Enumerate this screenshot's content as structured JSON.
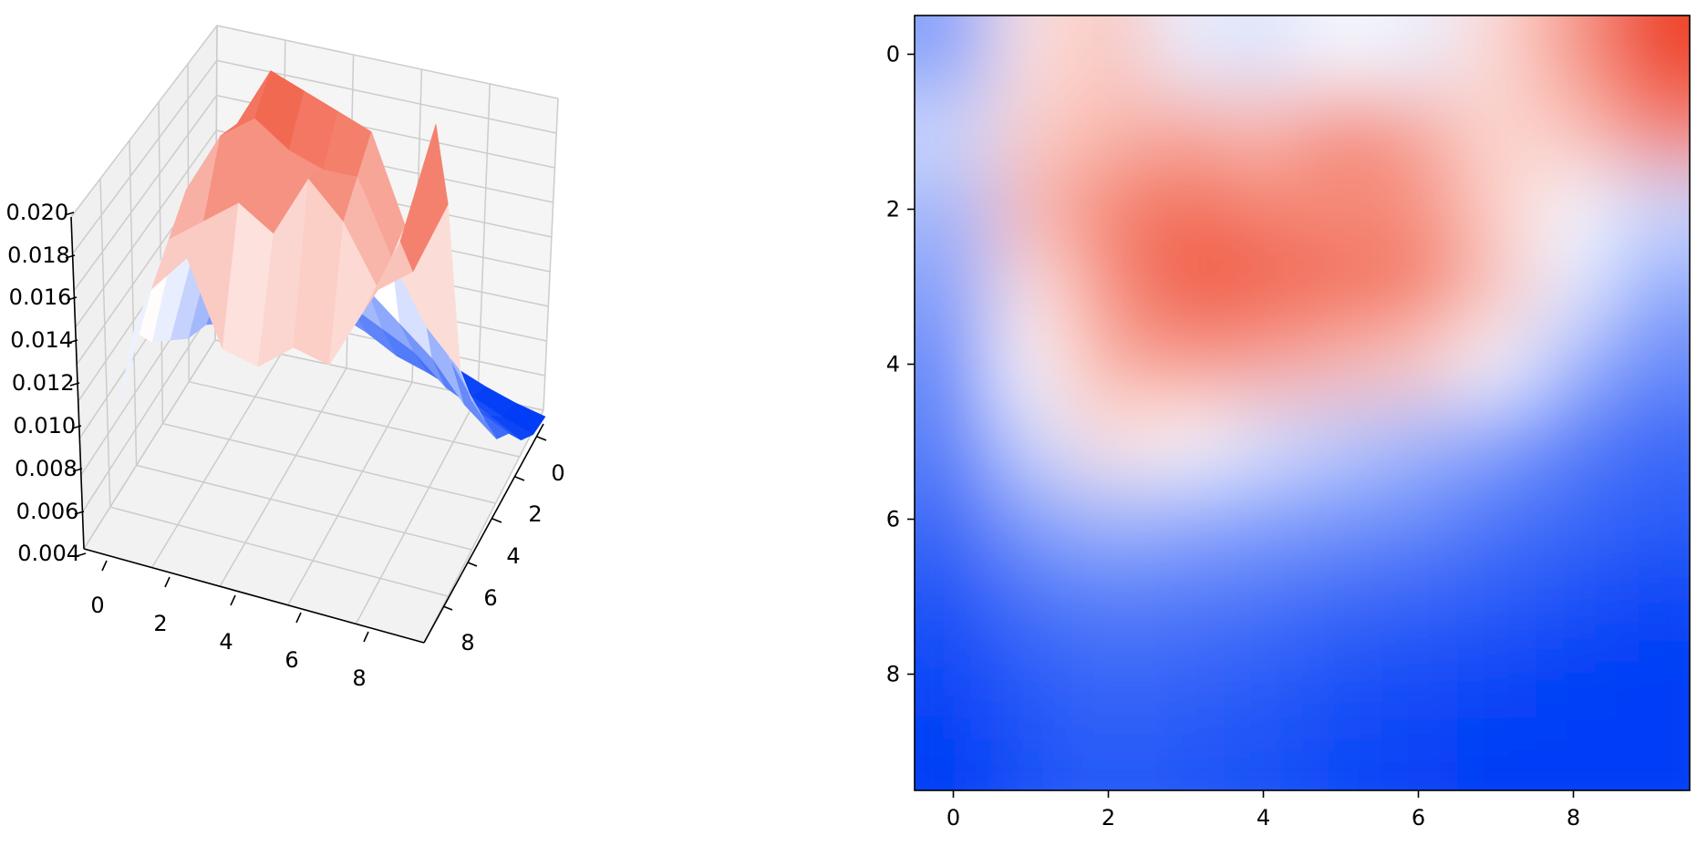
{
  "chart_data": [
    {
      "type": "surface3d",
      "colormap": "bwr",
      "grid": true,
      "x_ticks": [
        "0",
        "2",
        "4",
        "6",
        "8"
      ],
      "y_ticks": [
        "0",
        "2",
        "4",
        "6",
        "8"
      ],
      "z_ticks": [
        "0.004",
        "0.006",
        "0.008",
        "0.010",
        "0.012",
        "0.014",
        "0.016",
        "0.018",
        "0.020"
      ],
      "zlim": [
        0.004,
        0.0215
      ],
      "z": [
        [
          0.0085,
          0.014,
          0.0155,
          0.012,
          0.0115,
          0.0125,
          0.012,
          0.0145,
          0.0175,
          0.0225
        ],
        [
          0.011,
          0.015,
          0.016,
          0.017,
          0.016,
          0.0185,
          0.017,
          0.0145,
          0.0155,
          0.0185
        ],
        [
          0.0095,
          0.016,
          0.0185,
          0.0195,
          0.0185,
          0.018,
          0.018,
          0.015,
          0.0125,
          0.011
        ],
        [
          0.0085,
          0.014,
          0.018,
          0.0205,
          0.02,
          0.0195,
          0.019,
          0.0155,
          0.012,
          0.009
        ],
        [
          0.0075,
          0.013,
          0.0165,
          0.0175,
          0.017,
          0.016,
          0.015,
          0.0125,
          0.0095,
          0.0075
        ],
        [
          0.007,
          0.011,
          0.014,
          0.013,
          0.0115,
          0.0105,
          0.0095,
          0.0085,
          0.007,
          0.006
        ],
        [
          0.006,
          0.0085,
          0.0095,
          0.009,
          0.0085,
          0.008,
          0.0075,
          0.0065,
          0.006,
          0.0055
        ],
        [
          0.005,
          0.0065,
          0.007,
          0.0068,
          0.0065,
          0.006,
          0.0058,
          0.0055,
          0.005,
          0.0045
        ],
        [
          0.0045,
          0.0055,
          0.006,
          0.0058,
          0.0055,
          0.005,
          0.0048,
          0.0045,
          0.0042,
          0.004
        ],
        [
          0.004,
          0.005,
          0.0055,
          0.0052,
          0.005,
          0.0046,
          0.0043,
          0.0041,
          0.004,
          0.004
        ]
      ]
    },
    {
      "type": "heatmap",
      "colormap": "bwr",
      "interpolation": "smooth",
      "x_ticks": [
        "0",
        "2",
        "4",
        "6",
        "8"
      ],
      "y_ticks": [
        "0",
        "2",
        "4",
        "6",
        "8"
      ],
      "xlim": [
        -0.5,
        9.5
      ],
      "ylim": [
        9.5,
        -0.5
      ]
    }
  ]
}
